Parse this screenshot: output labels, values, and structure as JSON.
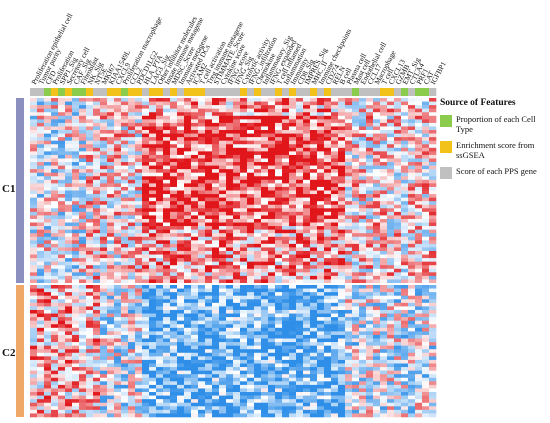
{
  "chart_data": {
    "type": "heatmap",
    "title": "",
    "xlabel": "",
    "ylabel": "",
    "columns": [
      "Proliferation epithelial cell",
      "Tumor purity",
      "CFD",
      "Proliferation",
      "SPP1_Sig",
      "Secretory cell",
      "CAF_Sig",
      "Fibroblast",
      "NK_Sig",
      "NT5E",
      "MKI67",
      "KIAA1549L",
      "CXCL9",
      "Proliferation macrophage",
      "CCL2",
      "PDCD1LG2",
      "HLA_PTA",
      "LAG3_Sig",
      "Other inhibitor molecules",
      "Innate immune metagene",
      "MDSC_Score",
      "Immune metagene",
      "Activated DCs",
      "ICAM2",
      "T cell activation",
      "Treg immune metagene",
      "STIMMATE_Score",
      "Cytokine score",
      "IFNG_score",
      "IFNG_Sig",
      "Cytolytic activity",
      "IFNG_infiltration",
      "Chemokine",
      "Inflammatory_Sig",
      "IFNG_expanded",
      "T cell inflamed",
      "Inflammation",
      "Immunity",
      "CD8_Sig",
      "IMPRES_Sig",
      "MHC_II",
      "Immune checkpoints",
      "CD274",
      "RELN",
      "B cell",
      "Plasma cell",
      "Mast cell",
      "Endothelial cell",
      "CCL17",
      "Macrophage",
      "T cell",
      "CXCL13",
      "GZMB",
      "EMT_Sig",
      "CTLA4",
      "PRF1",
      "CAT",
      "IGFBP1"
    ],
    "column_sources": [
      "g",
      "g",
      "p",
      "e",
      "p",
      "e",
      "p",
      "p",
      "e",
      "y",
      "y",
      "e",
      "e",
      "p",
      "e",
      "e",
      "y",
      "e",
      "e",
      "y",
      "e",
      "y",
      "e",
      "e",
      "e",
      "y",
      "y",
      "y",
      "y",
      "y",
      "e",
      "y",
      "e",
      "y",
      "y",
      "e",
      "y",
      "e",
      "y",
      "y",
      "e",
      "y",
      "e",
      "y",
      "y",
      "y",
      "p",
      "y",
      "y",
      "y",
      "e",
      "e",
      "y",
      "p",
      "y",
      "p",
      "p",
      "y"
    ],
    "groups": [
      {
        "name": "C1",
        "rows": 52
      },
      {
        "name": "C2",
        "rows": 37
      }
    ],
    "color_scale": {
      "low": "#2f8fe8",
      "mid": "#ffffff",
      "high": "#e0161b"
    },
    "legend": {
      "title": "Source of Features",
      "placement": "right",
      "items": [
        {
          "key": "p",
          "label": "Proportion of each Cell Type",
          "color": "#8ccc4c"
        },
        {
          "key": "e",
          "label": "Enrichment score from ssGSEA",
          "color": "#f2c21b"
        },
        {
          "key": "y",
          "label": "Score of each PPS gene",
          "color": "#c0c0c0"
        }
      ]
    },
    "group_colors": {
      "C1": "#8a8fbf",
      "C2": "#f0a868"
    }
  }
}
